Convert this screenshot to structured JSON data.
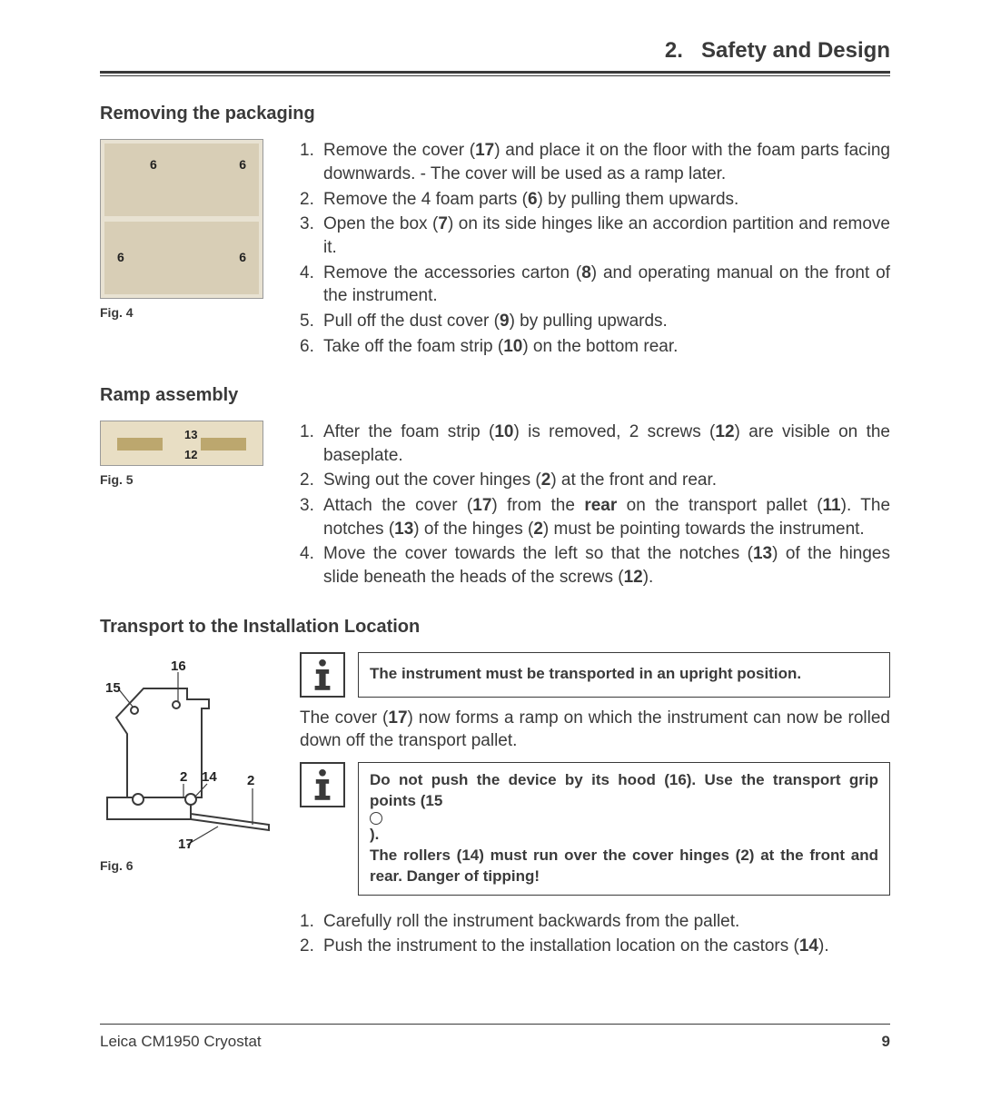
{
  "header": {
    "chapter": "2.",
    "title": "Safety and Design"
  },
  "section1": {
    "heading": "Removing the packaging",
    "fig_caption": "Fig. 4",
    "fig_labels": [
      "6",
      "6",
      "6",
      "6"
    ],
    "steps": [
      {
        "n": "1.",
        "html": "Remove the cover (<b>17</b>) and place it on the floor with the foam parts facing downwards. - The cover will be used as a ramp later."
      },
      {
        "n": "2.",
        "html": "Remove the 4 foam parts (<b>6</b>) by pulling them upwards."
      },
      {
        "n": "3.",
        "html": "Open the box (<b>7</b>) on its side hinges like an accordion partition and remove it."
      },
      {
        "n": "4.",
        "html": "Remove the accessories carton (<b>8</b>) and operating manual on the front of the instrument."
      },
      {
        "n": "5.",
        "html": "Pull off the dust cover (<b>9</b>) by pulling upwards."
      },
      {
        "n": "6.",
        "html": "Take off the foam strip (<b>10</b>) on the bottom rear."
      }
    ]
  },
  "section2": {
    "heading": "Ramp assembly",
    "fig_caption": "Fig. 5",
    "fig_labels": [
      "13",
      "12"
    ],
    "steps": [
      {
        "n": "1.",
        "html": "After the foam strip (<b>10</b>) is removed, 2 screws (<b>12</b>) are visible on the baseplate."
      },
      {
        "n": "2.",
        "html": "Swing out the cover hinges (<b>2</b>) at the front and rear."
      },
      {
        "n": "3.",
        "html": "Attach the cover (<b>17</b>) from the <b>rear</b> on the transport pallet (<b>11</b>). The notches (<b>13</b>) of the hinges (<b>2</b>) must be pointing towards the instrument."
      },
      {
        "n": "4.",
        "html": "Move the cover towards the left so that the notches (<b>13</b>) of the hinges slide beneath the heads of the screws (<b>12</b>)."
      }
    ]
  },
  "section3": {
    "heading": "Transport to the Installation Location",
    "fig_caption": "Fig. 6",
    "fig_labels": {
      "l15": "15",
      "l16": "16",
      "l2a": "2",
      "l14": "14",
      "l2b": "2",
      "l17": "17"
    },
    "info1": "The instrument must be transported in an upright position.",
    "para": "The cover (<b>17</b>) now forms a ramp on which the instrument can now be rolled down off the transport pallet.",
    "info2": "Do not push the device by its hood (16). Use the transport grip points (15 <span class=\"circ\"></span>).<br>The rollers (14) must run over the cover hinges (2) at the front and rear. Danger of tipping!",
    "steps": [
      {
        "n": "1.",
        "html": "Carefully roll the instrument backwards from the pallet."
      },
      {
        "n": "2.",
        "html": "Push the instrument to the installation location on the castors (<b>14</b>)."
      }
    ]
  },
  "footer": {
    "product": "Leica CM1950 Cryostat",
    "page": "9"
  },
  "colors": {
    "text": "#3a3a3a",
    "border": "#3a3a3a",
    "fig_bg": "#e8dec4"
  }
}
